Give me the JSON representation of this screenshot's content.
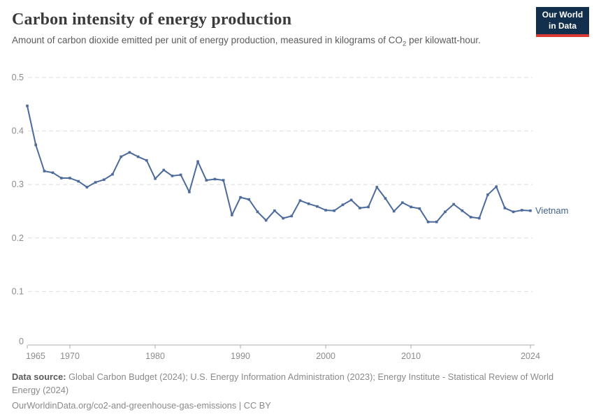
{
  "header": {
    "title": "Carbon intensity of energy production",
    "subtitle_pre": "Amount of carbon dioxide emitted per unit of energy production, measured in kilograms of CO",
    "subtitle_sub": "2",
    "subtitle_post": " per kilowatt-hour.",
    "logo": {
      "line1": "Our World",
      "line2": "in Data",
      "bg_color": "#12304e",
      "accent_color": "#d93a34"
    }
  },
  "chart_data": {
    "type": "line",
    "title": "Carbon intensity of energy production",
    "unit": "kilograms of CO₂ per kilowatt-hour",
    "grid": "horizontal dashed",
    "legend_position": "end-of-line label",
    "xlim": [
      1965,
      2024
    ],
    "ylim": [
      0,
      0.5
    ],
    "xticks": [
      1965,
      1970,
      1980,
      1990,
      2000,
      2010,
      2024
    ],
    "yticks": [
      0,
      0.1,
      0.2,
      0.3,
      0.4,
      0.5
    ],
    "ytick_labels": [
      "0",
      "0.1",
      "0.2",
      "0.3",
      "0.4",
      "0.5"
    ],
    "x": [
      1965,
      1966,
      1967,
      1968,
      1969,
      1970,
      1971,
      1972,
      1973,
      1974,
      1975,
      1976,
      1977,
      1978,
      1979,
      1980,
      1981,
      1982,
      1983,
      1984,
      1985,
      1986,
      1987,
      1988,
      1989,
      1990,
      1991,
      1992,
      1993,
      1994,
      1995,
      1996,
      1997,
      1998,
      1999,
      2000,
      2001,
      2002,
      2003,
      2004,
      2005,
      2006,
      2007,
      2008,
      2009,
      2010,
      2011,
      2012,
      2013,
      2014,
      2015,
      2016,
      2017,
      2018,
      2019,
      2020,
      2021,
      2022,
      2023,
      2024
    ],
    "series": [
      {
        "name": "Vietnam",
        "color": "#4C6A9C",
        "label_color": "#41618E",
        "values": [
          0.447,
          0.374,
          0.325,
          0.322,
          0.312,
          0.312,
          0.306,
          0.295,
          0.304,
          0.309,
          0.319,
          0.352,
          0.36,
          0.352,
          0.345,
          0.311,
          0.327,
          0.316,
          0.318,
          0.286,
          0.343,
          0.308,
          0.31,
          0.308,
          0.243,
          0.276,
          0.272,
          0.249,
          0.233,
          0.251,
          0.237,
          0.241,
          0.27,
          0.264,
          0.259,
          0.252,
          0.251,
          0.262,
          0.271,
          0.256,
          0.258,
          0.295,
          0.274,
          0.25,
          0.266,
          0.258,
          0.255,
          0.23,
          0.23,
          0.249,
          0.263,
          0.251,
          0.239,
          0.237,
          0.281,
          0.296,
          0.256,
          0.249,
          0.252,
          0.251
        ]
      }
    ],
    "colors": {
      "gridline": "#dedede",
      "axis": "#adadad",
      "tick_label": "#8c8c8c"
    }
  },
  "footer": {
    "source_label": "Data source:",
    "source_text": " Global Carbon Budget (2024); U.S. Energy Information Administration (2023); Energy Institute - Statistical Review of World Energy (2024)",
    "citation": "OurWorldinData.org/co2-and-greenhouse-gas-emissions | CC BY"
  }
}
